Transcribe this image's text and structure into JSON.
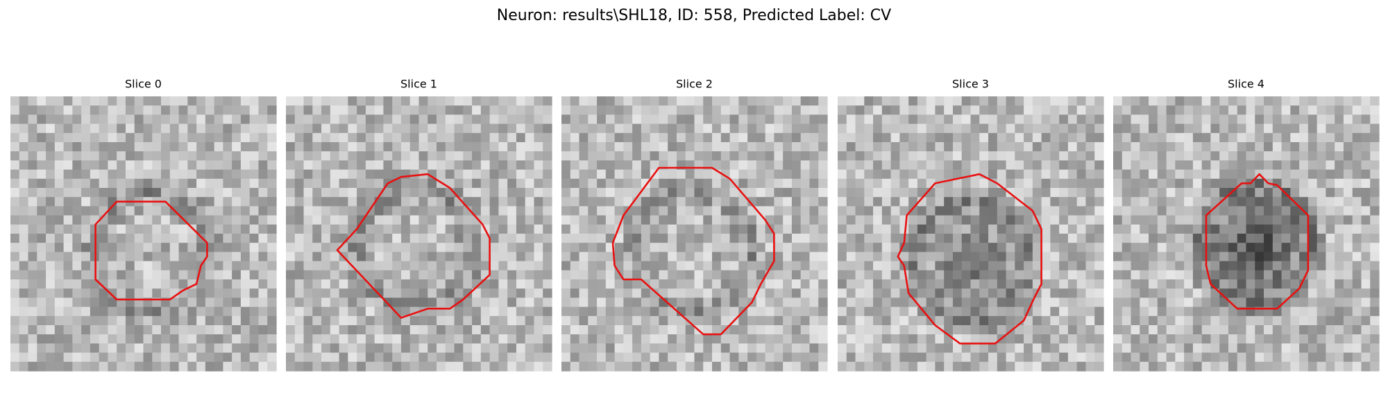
{
  "figure": {
    "title": "Neuron: results\\SHL18, ID: 558, Predicted Label: CV",
    "panels": [
      {
        "title": "Slice 0"
      },
      {
        "title": "Slice 1"
      },
      {
        "title": "Slice 2"
      },
      {
        "title": "Slice 3"
      },
      {
        "title": "Slice 4"
      }
    ]
  }
}
